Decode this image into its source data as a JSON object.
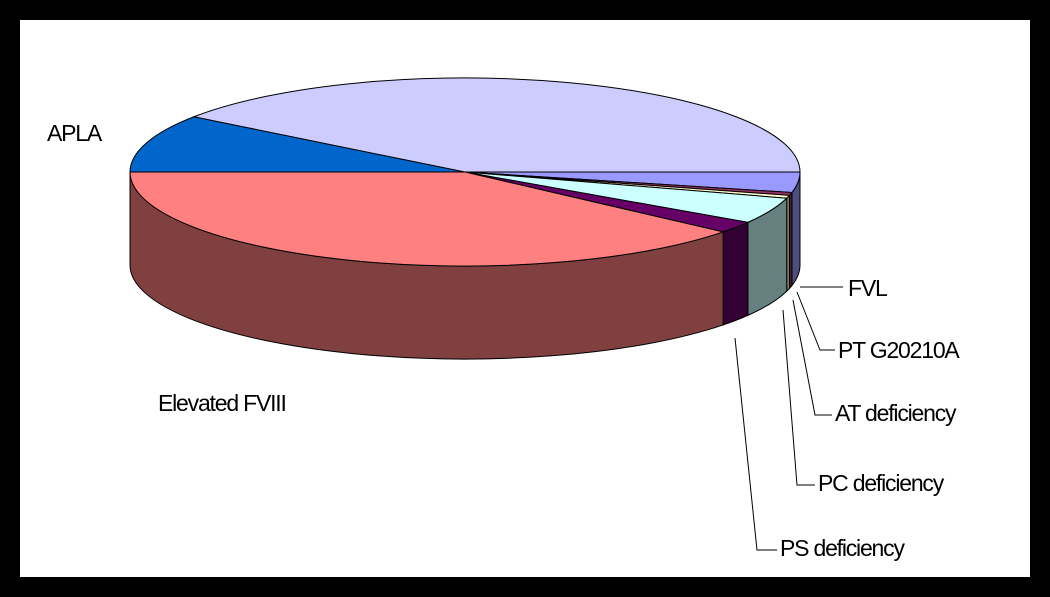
{
  "chart_data": {
    "type": "pie3d",
    "categories": [
      "FVL",
      "PT G20210A",
      "AT deficiency",
      "PC deficiency",
      "PS deficiency",
      "Elevated FVIII",
      "APLA",
      null
    ],
    "values": [
      3.5,
      0.5,
      0.5,
      4.5,
      2,
      39,
      10,
      40
    ],
    "colors": [
      "#9999ff",
      "#993366",
      "#ffffcc",
      "#ccffff",
      "#660066",
      "#ff8080",
      "#0066cc",
      "#ccccff"
    ]
  }
}
